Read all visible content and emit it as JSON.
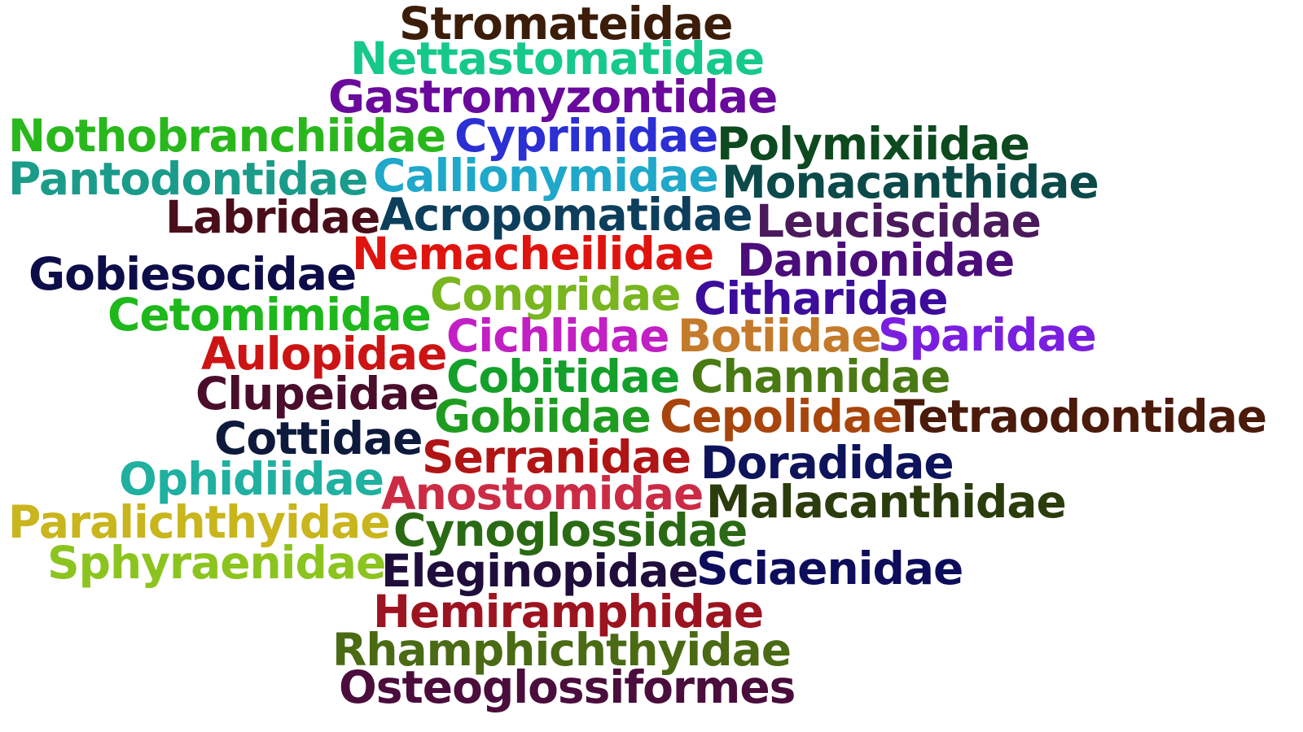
{
  "words": [
    {
      "text": "Stromateidae",
      "color": "#3b1d0a"
    },
    {
      "text": "Nettastomatidae",
      "color": "#16c98a"
    },
    {
      "text": "Gastromyzontidae",
      "color": "#6a0a9c"
    },
    {
      "text": "Nothobranchiidae",
      "color": "#29b81c"
    },
    {
      "text": "Cyprinidae",
      "color": "#2b2fd4"
    },
    {
      "text": "Polymixiidae",
      "color": "#0d4a1f"
    },
    {
      "text": "Pantodontidae",
      "color": "#1b9c8a"
    },
    {
      "text": "Callionymidae",
      "color": "#1fa8c9"
    },
    {
      "text": "Monacanthidae",
      "color": "#0c4a4a"
    },
    {
      "text": "Labridae",
      "color": "#4a0d1a"
    },
    {
      "text": "Acropomatidae",
      "color": "#0d3f5c"
    },
    {
      "text": "Leuciscidae",
      "color": "#4a1a5c"
    },
    {
      "text": "Nemacheilidae",
      "color": "#e0140f"
    },
    {
      "text": "Danionidae",
      "color": "#4a0d7a"
    },
    {
      "text": "Gobiesocidae",
      "color": "#0d0d4a"
    },
    {
      "text": "Congridae",
      "color": "#78b51f"
    },
    {
      "text": "Citharidae",
      "color": "#3c0d9c"
    },
    {
      "text": "Cetomimidae",
      "color": "#1fb81c"
    },
    {
      "text": "Cichlidae",
      "color": "#c21fc4"
    },
    {
      "text": "Botiidae",
      "color": "#c47a2b"
    },
    {
      "text": "Sparidae",
      "color": "#7a1fe0"
    },
    {
      "text": "Aulopidae",
      "color": "#cc1414"
    },
    {
      "text": "Cobitidae",
      "color": "#14a02b"
    },
    {
      "text": "Channidae",
      "color": "#4a7a14"
    },
    {
      "text": "Clupeidae",
      "color": "#4a0d2b"
    },
    {
      "text": "Gobiidae",
      "color": "#1f9c1f"
    },
    {
      "text": "Cepolidae",
      "color": "#a8450d"
    },
    {
      "text": "Tetraodontidae",
      "color": "#4a1a0a"
    },
    {
      "text": "Cottidae",
      "color": "#0d1a3c"
    },
    {
      "text": "Serranidae",
      "color": "#b01414"
    },
    {
      "text": "Doradidae",
      "color": "#0d145c"
    },
    {
      "text": "Ophidiidae",
      "color": "#1fb0a0"
    },
    {
      "text": "Anostomidae",
      "color": "#cc2b45"
    },
    {
      "text": "Malacanthidae",
      "color": "#2b3c0d"
    },
    {
      "text": "Paralichthyidae",
      "color": "#c9b51c"
    },
    {
      "text": "Cynoglossidae",
      "color": "#2b6a14"
    },
    {
      "text": "Sphyraenidae",
      "color": "#8cc41f"
    },
    {
      "text": "Eleginopidae",
      "color": "#1f0d3c"
    },
    {
      "text": "Sciaenidae",
      "color": "#0d0d5c"
    },
    {
      "text": "Hemiramphidae",
      "color": "#9c1420"
    },
    {
      "text": "Rhamphichthyidae",
      "color": "#4a6a14"
    },
    {
      "text": "Osteoglossiformes",
      "color": "#4a0d3c"
    }
  ]
}
